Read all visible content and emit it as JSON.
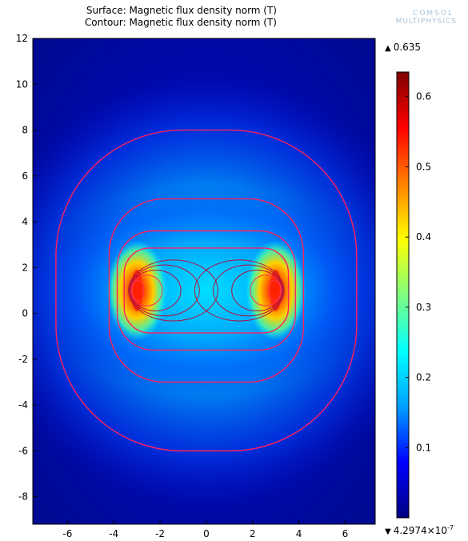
{
  "titles": {
    "surface": "Surface: Magnetic flux density norm (T)",
    "contour": "Contour: Magnetic flux density norm (T)"
  },
  "logo": {
    "line1": "COMSOL",
    "line2": "MULTIPHYSICS"
  },
  "colorbar": {
    "max_label": "0.635",
    "min_label_base": "4.2974×10",
    "min_label_exp": "-7",
    "max_symbol": "▲",
    "min_symbol": "▼",
    "colormap": "rainbow",
    "colors": [
      "#00007f",
      "#0000ff",
      "#00a0ff",
      "#00ffff",
      "#7fff7f",
      "#ffff00",
      "#ff8000",
      "#ff0000",
      "#7f0000"
    ]
  },
  "chart_data": {
    "type": "heatmap",
    "xlim": [
      -7.5,
      7.3
    ],
    "ylim": [
      -9.2,
      12
    ],
    "x_ticks": [
      -6,
      -4,
      -2,
      0,
      2,
      4,
      6
    ],
    "y_ticks": [
      12,
      10,
      8,
      6,
      4,
      2,
      0,
      -2,
      -4,
      -6,
      -8
    ],
    "colorbar_range": [
      4.2974e-07,
      0.635
    ],
    "colorbar_ticks": [
      0.6,
      0.5,
      0.4,
      0.3,
      0.2,
      0.1
    ],
    "contour_color": "#ff2060",
    "sources": [
      {
        "x": -3,
        "y": 1,
        "peak": 0.635
      },
      {
        "x": 3,
        "y": 1,
        "peak": 0.635
      }
    ],
    "contours": [
      {
        "level": 0.01,
        "rx": 6.5,
        "ry": 7.0,
        "cy": 1.0
      },
      {
        "level": 0.03,
        "rx": 4.2,
        "ry": 4.0,
        "cy": 1.0
      },
      {
        "level": 0.06,
        "rx": 3.85,
        "ry": 2.6,
        "cy": 1.0
      },
      {
        "level": 0.1,
        "rx": 3.55,
        "ry": 1.85,
        "cy": 1.0
      }
    ]
  }
}
